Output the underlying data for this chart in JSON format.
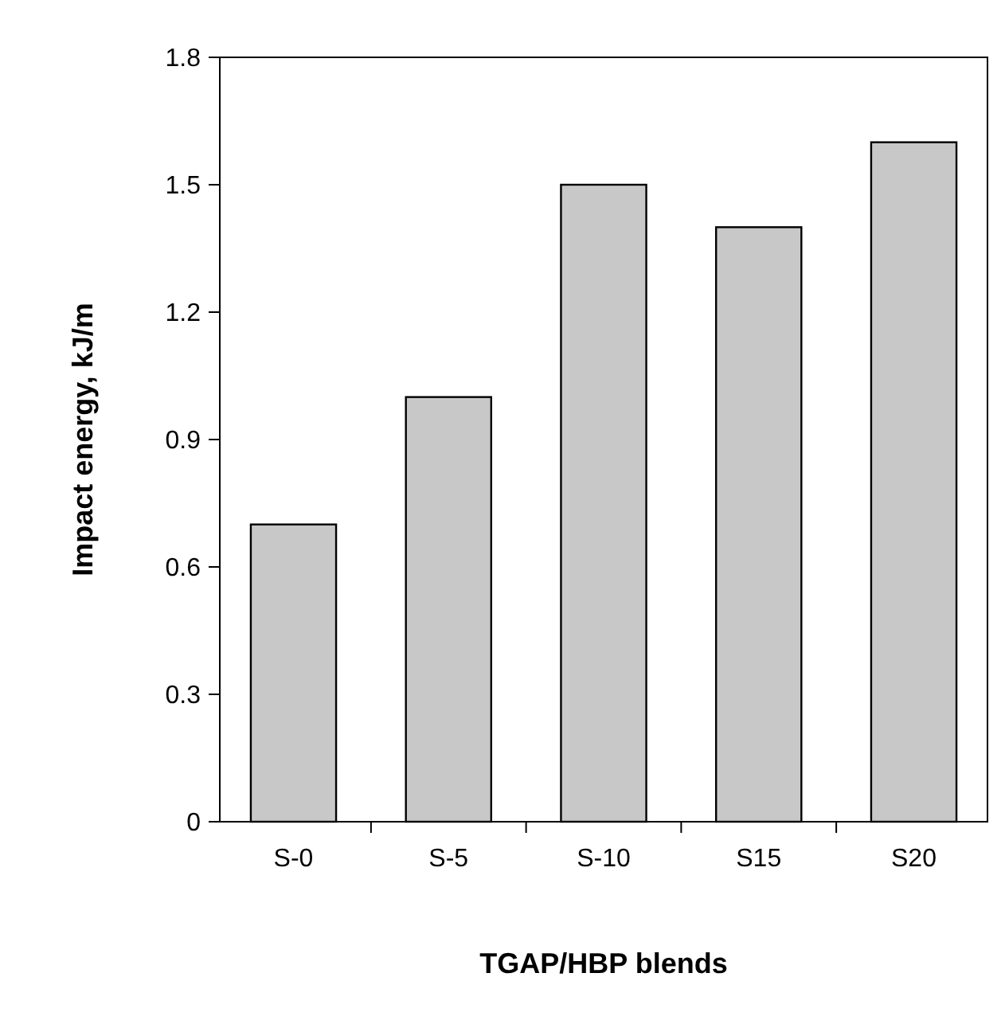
{
  "chart_data": {
    "type": "bar",
    "xlabel": "TGAP/HBP blends",
    "ylabel": "Impact energy, kJ/m",
    "categories": [
      "S-0",
      "S-5",
      "S-10",
      "S15",
      "S20"
    ],
    "values": [
      0.7,
      1.0,
      1.5,
      1.4,
      1.6
    ],
    "color": "#c8c8c8",
    "ylim": [
      0,
      1.8
    ],
    "yticks": [
      0,
      0.3,
      0.6,
      0.9,
      1.2,
      1.5,
      1.8
    ],
    "grid": false
  }
}
